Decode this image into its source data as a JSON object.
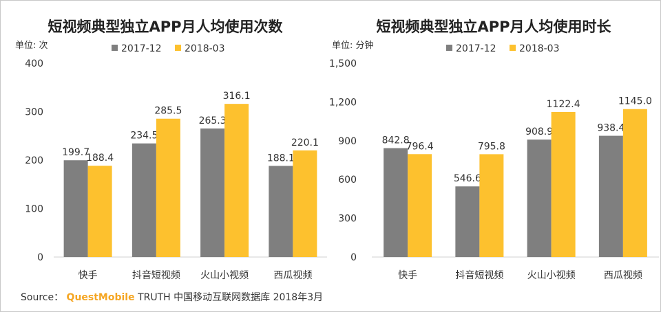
{
  "chart_data": [
    {
      "type": "bar",
      "title": "短视频典型独立APP月人均使用次数",
      "unit_label": "单位: 次",
      "categories": [
        "快手",
        "抖音短视频",
        "火山小视频",
        "西瓜视频"
      ],
      "series": [
        {
          "name": "2017-12",
          "values": [
            199.7,
            234.5,
            265.3,
            188.1
          ]
        },
        {
          "name": "2018-03",
          "values": [
            188.4,
            285.5,
            316.1,
            220.1
          ]
        }
      ],
      "value_labels": [
        [
          "199.7",
          "234.5",
          "265.3",
          "188.1"
        ],
        [
          "188.4",
          "285.5",
          "316.1",
          "220.1"
        ]
      ],
      "ylim": [
        0,
        400
      ],
      "yticks": [
        0,
        100,
        200,
        300,
        400
      ],
      "ytick_labels": [
        "0",
        "100",
        "200",
        "300",
        "400"
      ],
      "legend_position": "top-center",
      "grid": false
    },
    {
      "type": "bar",
      "title": "短视频典型独立APP月人均使用时长",
      "unit_label": "单位: 分钟",
      "categories": [
        "快手",
        "抖音短视频",
        "火山小视频",
        "西瓜视频"
      ],
      "series": [
        {
          "name": "2017-12",
          "values": [
            842.8,
            546.6,
            908.9,
            938.4
          ]
        },
        {
          "name": "2018-03",
          "values": [
            796.4,
            795.8,
            1122.4,
            1145.0
          ]
        }
      ],
      "value_labels": [
        [
          "842.8",
          "546.6",
          "908.9",
          "938.4"
        ],
        [
          "796.4",
          "795.8",
          "1122.4",
          "1145.0"
        ]
      ],
      "ylim": [
        0,
        1500
      ],
      "yticks": [
        0,
        300,
        600,
        900,
        1200,
        1500
      ],
      "ytick_labels": [
        "0",
        "300",
        "600",
        "900",
        "1,200",
        "1,500"
      ],
      "legend_position": "top-center",
      "grid": false
    }
  ],
  "colors": {
    "series_1": "#7f7f7f",
    "series_2": "#fdc12e"
  },
  "source": {
    "prefix": "Source：",
    "brand": "QuestMobile",
    "text": "TRUTH 中国移动互联网数据库 2018年3月"
  }
}
